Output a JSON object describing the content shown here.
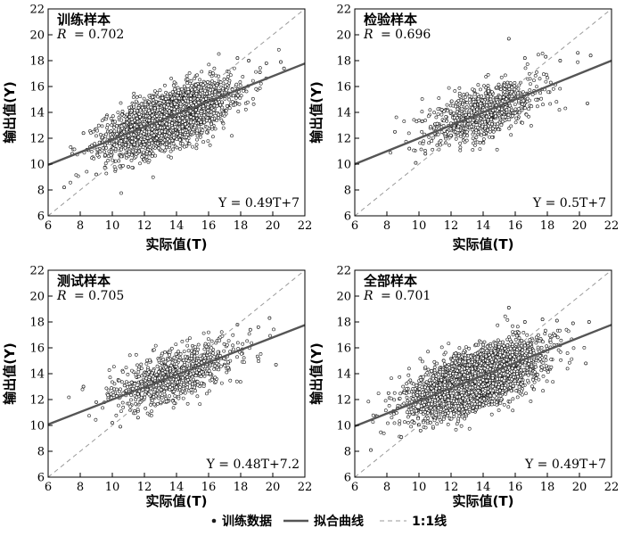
{
  "chart_data": [
    {
      "type": "scatter",
      "panel_title": "训练样本",
      "r_label": "R",
      "r_value": "= 0.702",
      "equation": "Y = 0.49T+7",
      "xlabel": "实际值(T)",
      "ylabel": "输出值(Y)",
      "xlim": [
        6,
        22
      ],
      "ylim": [
        6,
        22
      ],
      "xticks": [
        "6",
        "8",
        "10",
        "12",
        "14",
        "16",
        "18",
        "20",
        "22"
      ],
      "yticks": [
        "6",
        "8",
        "10",
        "12",
        "14",
        "16",
        "18",
        "20",
        "22"
      ],
      "fit": {
        "slope": 0.49,
        "intercept": 7
      },
      "identity_line": true,
      "cloud": {
        "density": "very-high",
        "count": 2600,
        "cx": 13.5,
        "cy": 13.5,
        "sx": 1.9,
        "sy": 1.35,
        "corr": 0.62
      },
      "outliers": [
        [
          7,
          8.2
        ],
        [
          7.5,
          10.8
        ],
        [
          8.6,
          11.3
        ],
        [
          9.0,
          9.2
        ],
        [
          9.4,
          11.7
        ],
        [
          10.2,
          9.6
        ],
        [
          11,
          9.8
        ],
        [
          17.8,
          18.2
        ],
        [
          18.5,
          18.0
        ],
        [
          19.6,
          17.8
        ],
        [
          20.5,
          17.9
        ],
        [
          19.2,
          17.1
        ],
        [
          20.7,
          17.4
        ],
        [
          9.8,
          11.8
        ],
        [
          8.2,
          12.4
        ]
      ]
    },
    {
      "type": "scatter",
      "panel_title": "检验样本",
      "r_label": "R",
      "r_value": "= 0.696",
      "equation": "Y = 0.5T+7",
      "xlabel": "实际值(T)",
      "ylabel": "输出值(Y)",
      "xlim": [
        6,
        22
      ],
      "ylim": [
        6,
        22
      ],
      "xticks": [
        "6",
        "8",
        "10",
        "12",
        "14",
        "16",
        "18",
        "20",
        "22"
      ],
      "yticks": [
        "6",
        "8",
        "10",
        "12",
        "14",
        "16",
        "18",
        "20",
        "22"
      ],
      "fit": {
        "slope": 0.5,
        "intercept": 7
      },
      "identity_line": true,
      "cloud": {
        "density": "medium",
        "count": 850,
        "cx": 14,
        "cy": 14,
        "sx": 1.8,
        "sy": 1.25,
        "corr": 0.6
      },
      "outliers": [
        [
          8.5,
          12.5
        ],
        [
          9.4,
          11.2
        ],
        [
          9.8,
          10.1
        ],
        [
          10.2,
          13.3
        ],
        [
          15.6,
          19.7
        ],
        [
          16.6,
          18.2
        ],
        [
          17.9,
          18.3
        ],
        [
          18.8,
          18.0
        ],
        [
          19.9,
          18.6
        ],
        [
          20.7,
          18.4
        ],
        [
          20.5,
          14.7
        ],
        [
          10.4,
          10.8
        ]
      ]
    },
    {
      "type": "scatter",
      "panel_title": "测试样本",
      "r_label": "R",
      "r_value": "= 0.705",
      "equation": "Y = 0.48T+7.2",
      "xlabel": "实际值(T)",
      "ylabel": "输出值(Y)",
      "xlim": [
        6,
        22
      ],
      "ylim": [
        6,
        22
      ],
      "xticks": [
        "6",
        "8",
        "10",
        "12",
        "14",
        "16",
        "18",
        "20",
        "22"
      ],
      "yticks": [
        "6",
        "8",
        "10",
        "12",
        "14",
        "16",
        "18",
        "20",
        "22"
      ],
      "fit": {
        "slope": 0.48,
        "intercept": 7.2
      },
      "identity_line": true,
      "cloud": {
        "density": "medium",
        "count": 850,
        "cx": 13.8,
        "cy": 13.8,
        "sx": 1.9,
        "sy": 1.25,
        "corr": 0.62
      },
      "outliers": [
        [
          8.2,
          13.0
        ],
        [
          9.0,
          11.8
        ],
        [
          10.0,
          10.2
        ],
        [
          10.5,
          9.9
        ],
        [
          11.6,
          10.6
        ],
        [
          19.8,
          18.3
        ],
        [
          19.1,
          17.6
        ],
        [
          20.2,
          14.7
        ],
        [
          17.8,
          17.8
        ],
        [
          18.6,
          17.4
        ]
      ]
    },
    {
      "type": "scatter",
      "panel_title": "全部样本",
      "r_label": "R",
      "r_value": "= 0.701",
      "equation": "Y = 0.49T+7",
      "xlabel": "实际值(T)",
      "ylabel": "输出值(Y)",
      "xlim": [
        6,
        22
      ],
      "ylim": [
        6,
        22
      ],
      "xticks": [
        "6",
        "8",
        "10",
        "12",
        "14",
        "16",
        "18",
        "20",
        "22"
      ],
      "yticks": [
        "6",
        "8",
        "10",
        "12",
        "14",
        "16",
        "18",
        "20",
        "22"
      ],
      "fit": {
        "slope": 0.49,
        "intercept": 7
      },
      "identity_line": true,
      "cloud": {
        "density": "very-high",
        "count": 3400,
        "cx": 13.5,
        "cy": 13.5,
        "sx": 1.95,
        "sy": 1.35,
        "corr": 0.62
      },
      "outliers": [
        [
          7,
          8.1
        ],
        [
          7.4,
          10.7
        ],
        [
          8.4,
          11.1
        ],
        [
          8.9,
          9.1
        ],
        [
          9.3,
          11.9
        ],
        [
          10.1,
          9.6
        ],
        [
          15.6,
          19.1
        ],
        [
          17.7,
          18.2
        ],
        [
          18.6,
          18.1
        ],
        [
          19.6,
          17.9
        ],
        [
          20.6,
          18.0
        ],
        [
          20.4,
          14.8
        ],
        [
          16.6,
          18.0
        ],
        [
          8.1,
          12.5
        ],
        [
          9.7,
          10.2
        ]
      ]
    }
  ],
  "legend": {
    "items": [
      {
        "marker": "point",
        "label": "训练数据"
      },
      {
        "marker": "solid-line",
        "label": "拟合曲线"
      },
      {
        "marker": "dashed-line",
        "label": "1:1线"
      }
    ]
  },
  "colors": {
    "points": "#1a1a1a",
    "fit_line": "#555555",
    "identity_line": "#9a9a9a",
    "axes": "#000000"
  }
}
